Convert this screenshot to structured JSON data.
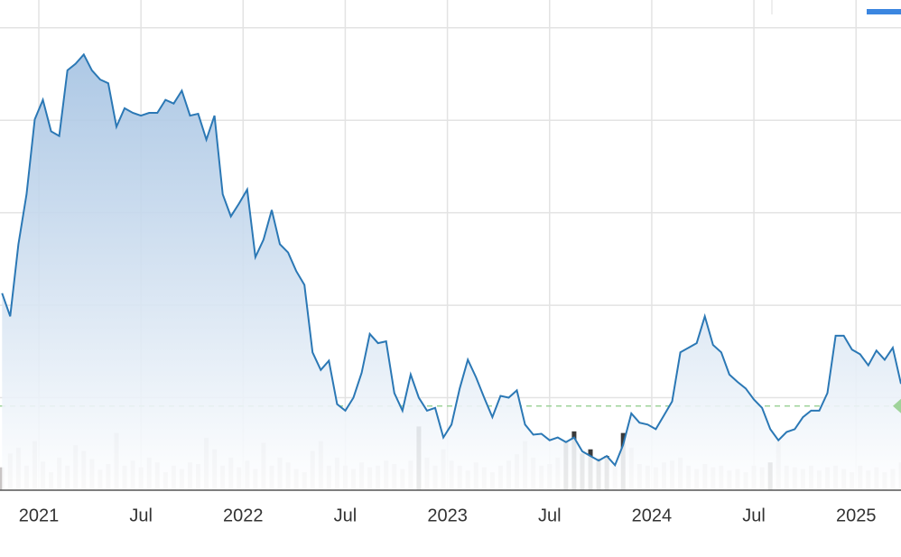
{
  "chart_data": {
    "type": "line",
    "x": [
      2020.82,
      2020.86,
      2020.9,
      2020.94,
      2020.98,
      2021.02,
      2021.06,
      2021.1,
      2021.14,
      2021.18,
      2021.22,
      2021.26,
      2021.3,
      2021.34,
      2021.38,
      2021.42,
      2021.46,
      2021.5,
      2021.54,
      2021.58,
      2021.62,
      2021.66,
      2021.7,
      2021.74,
      2021.78,
      2021.82,
      2021.86,
      2021.9,
      2021.94,
      2021.98,
      2022.02,
      2022.06,
      2022.1,
      2022.14,
      2022.18,
      2022.22,
      2022.26,
      2022.3,
      2022.34,
      2022.38,
      2022.42,
      2022.46,
      2022.5,
      2022.54,
      2022.58,
      2022.62,
      2022.66,
      2022.7,
      2022.74,
      2022.78,
      2022.82,
      2022.86,
      2022.9,
      2022.94,
      2022.98,
      2023.02,
      2023.06,
      2023.1,
      2023.14,
      2023.18,
      2023.22,
      2023.26,
      2023.3,
      2023.34,
      2023.38,
      2023.42,
      2023.46,
      2023.5,
      2023.54,
      2023.58,
      2023.62,
      2023.66,
      2023.7,
      2023.74,
      2023.78,
      2023.82,
      2023.86,
      2023.9,
      2023.94,
      2023.98,
      2024.02,
      2024.06,
      2024.1,
      2024.14,
      2024.18,
      2024.22,
      2024.26,
      2024.3,
      2024.34,
      2024.38,
      2024.42,
      2024.46,
      2024.5,
      2024.54,
      2024.58,
      2024.62,
      2024.66,
      2024.7,
      2024.74,
      2024.78,
      2024.82,
      2024.86,
      2024.9,
      2024.94,
      2024.98,
      2025.02,
      2025.06,
      2025.1,
      2025.14,
      2025.18,
      2025.22
    ],
    "series": [
      {
        "color": "#2b78b5",
        "values": [
          21.3,
          18.8,
          26.6,
          32.0,
          40.1,
          42.2,
          38.8,
          38.3,
          45.4,
          46.1,
          47.1,
          45.4,
          44.4,
          44.0,
          39.3,
          41.3,
          40.8,
          40.5,
          40.8,
          40.8,
          42.2,
          41.8,
          43.2,
          40.5,
          40.7,
          37.9,
          40.5,
          32.0,
          29.6,
          31.0,
          32.5,
          25.2,
          27.1,
          30.3,
          26.6,
          25.7,
          23.7,
          22.2,
          14.9,
          13.0,
          14.0,
          9.3,
          8.6,
          10.0,
          12.7,
          16.9,
          15.9,
          16.1,
          10.5,
          8.6,
          12.5,
          10.0,
          8.6,
          8.9,
          5.7,
          7.1,
          11.0,
          14.1,
          12.2,
          10.0,
          7.9,
          10.2,
          10.0,
          10.8,
          7.1,
          6.0,
          6.1,
          5.4,
          5.7,
          5.2,
          5.7,
          4.2,
          3.7,
          3.2,
          3.7,
          2.7,
          4.9,
          8.3,
          7.3,
          7.1,
          6.6,
          8.1,
          9.6,
          14.9,
          15.4,
          15.9,
          18.8,
          15.7,
          14.9,
          12.5,
          11.7,
          11.0,
          9.8,
          8.9,
          6.6,
          5.4,
          6.3,
          6.6,
          7.9,
          8.6,
          8.6,
          10.5,
          16.7,
          16.7,
          15.2,
          14.7,
          13.5,
          15.1,
          14.1,
          15.4,
          11.5
        ]
      },
      {
        "type": "bar",
        "axis": "y2",
        "color": "#c9c5c5",
        "highlight_color": "#3a3a3a",
        "highlight": [
          51,
          69,
          70,
          71,
          72,
          73,
          74,
          76,
          94
        ],
        "values": [
          28,
          45,
          52,
          30,
          60,
          35,
          22,
          40,
          30,
          55,
          48,
          38,
          25,
          32,
          70,
          30,
          36,
          28,
          40,
          34,
          22,
          30,
          26,
          34,
          32,
          64,
          50,
          30,
          40,
          28,
          36,
          26,
          58,
          30,
          40,
          34,
          26,
          22,
          48,
          60,
          30,
          40,
          30,
          26,
          34,
          28,
          30,
          36,
          32,
          26,
          36,
          78,
          40,
          30,
          50,
          36,
          30,
          24,
          34,
          28,
          22,
          30,
          36,
          44,
          60,
          40,
          30,
          32,
          40,
          60,
          72,
          45,
          50,
          38,
          42,
          30,
          70,
          52,
          32,
          30,
          28,
          34,
          36,
          40,
          30,
          26,
          32,
          28,
          30,
          24,
          26,
          22,
          30,
          28,
          34,
          60,
          30,
          28,
          26,
          30,
          24,
          28,
          30,
          26,
          22,
          30,
          24,
          28,
          22,
          26,
          34
        ]
      }
    ],
    "xlim": [
      2020.81,
      2025.22
    ],
    "xticks": [
      2021,
      {
        "value": 2021.5,
        "label": "Jul"
      },
      2022,
      {
        "value": 2022.5,
        "label": "Jul"
      },
      2023,
      {
        "value": 2023.5,
        "label": "Jul"
      },
      2024,
      {
        "value": 2024.5,
        "label": "Jul"
      },
      2025
    ],
    "ylim": [
      0,
      53
    ],
    "yticks": [
      10,
      20,
      30,
      40,
      50
    ],
    "y2lim": [
      0,
      600
    ],
    "reference_line": {
      "value": 9.1,
      "color": "#9fd39a"
    },
    "grid": true
  }
}
